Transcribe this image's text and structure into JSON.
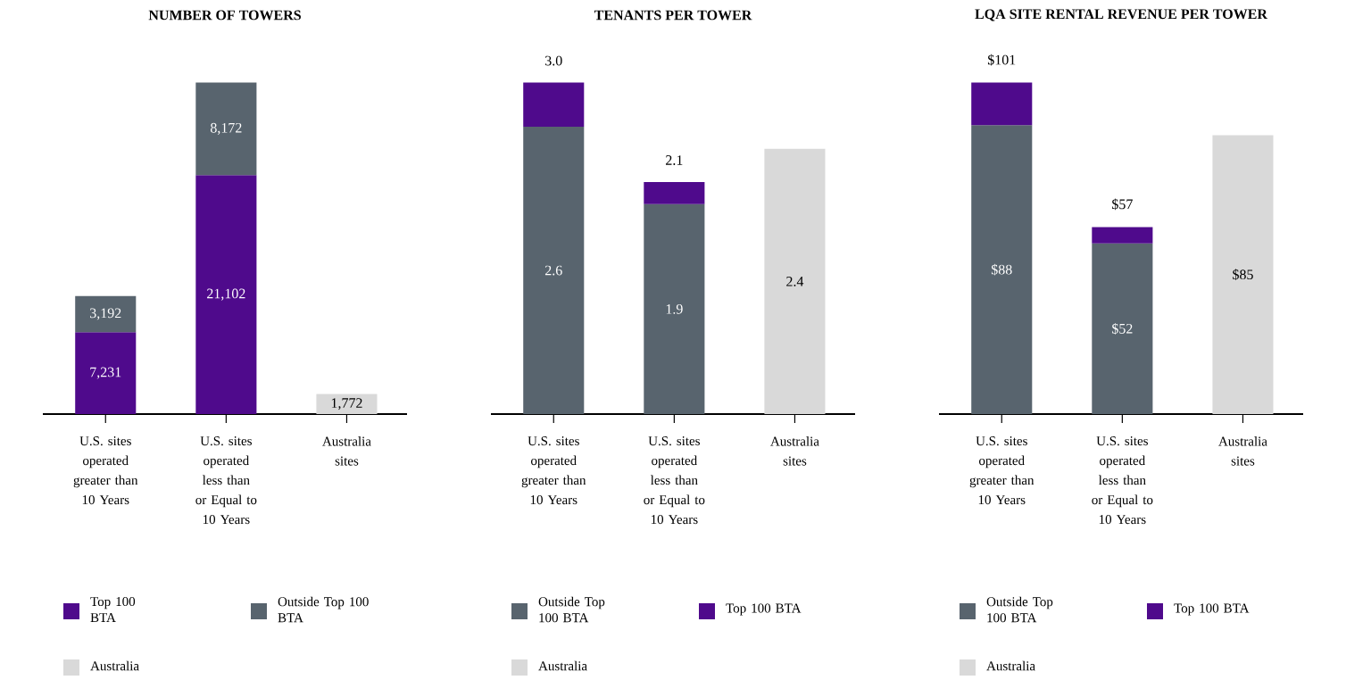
{
  "chart_data": [
    {
      "type": "bar",
      "title": "NUMBER OF TOWERS",
      "stacked": true,
      "legend": "bottom",
      "categories": [
        "U.S. sites operated greater than 10 Years",
        "U.S. sites operated less than or Equal to 10 Years",
        "Australia sites"
      ],
      "series": [
        {
          "name": "Top 100 BTA",
          "color": "#4f0a8c",
          "values": [
            7231,
            21102,
            null
          ],
          "value_labels": [
            "7,231",
            "21,102",
            null
          ]
        },
        {
          "name": "Outside Top 100 BTA",
          "color": "#58646e",
          "values": [
            3192,
            8172,
            null
          ],
          "value_labels": [
            "3,192",
            "8,172",
            null
          ]
        },
        {
          "name": "Australia",
          "color": "#d9d9d9",
          "values": [
            null,
            null,
            1772
          ],
          "value_labels": [
            null,
            null,
            "1,772"
          ]
        }
      ]
    },
    {
      "type": "bar",
      "title": "TENANTS PER TOWER",
      "stacked": true,
      "legend": "bottom",
      "categories": [
        "U.S. sites operated greater than 10 Years",
        "U.S. sites operated less than or Equal to 10 Years",
        "Australia sites"
      ],
      "series": [
        {
          "name": "Outside Top 100 BTA",
          "color": "#58646e",
          "values": [
            2.6,
            1.9,
            null
          ],
          "value_labels": [
            "2.6",
            "1.9",
            null
          ]
        },
        {
          "name": "Top 100 BTA",
          "color": "#4f0a8c",
          "values": [
            0.4,
            0.2,
            null
          ]
        },
        {
          "name": "Australia",
          "color": "#d9d9d9",
          "values": [
            null,
            null,
            2.4
          ],
          "value_labels": [
            null,
            null,
            "2.4"
          ]
        }
      ],
      "totals": [
        "3.0",
        "2.1",
        null
      ]
    },
    {
      "type": "bar",
      "title": "LQA SITE RENTAL REVENUE PER TOWER",
      "stacked": true,
      "legend": "bottom",
      "categories": [
        "U.S. sites operated greater than 10 Years",
        "U.S. sites operated less than or Equal to 10 Years",
        "Australia sites"
      ],
      "series": [
        {
          "name": "Outside Top 100 BTA",
          "color": "#58646e",
          "values": [
            88,
            52,
            null
          ],
          "value_labels": [
            "$88",
            "$52",
            null
          ]
        },
        {
          "name": "Top 100 BTA",
          "color": "#4f0a8c",
          "values": [
            13,
            5,
            null
          ]
        },
        {
          "name": "Australia",
          "color": "#d9d9d9",
          "values": [
            null,
            null,
            85
          ],
          "value_labels": [
            null,
            null,
            "$85"
          ]
        }
      ],
      "totals": [
        "$101",
        "$57",
        null
      ]
    }
  ]
}
